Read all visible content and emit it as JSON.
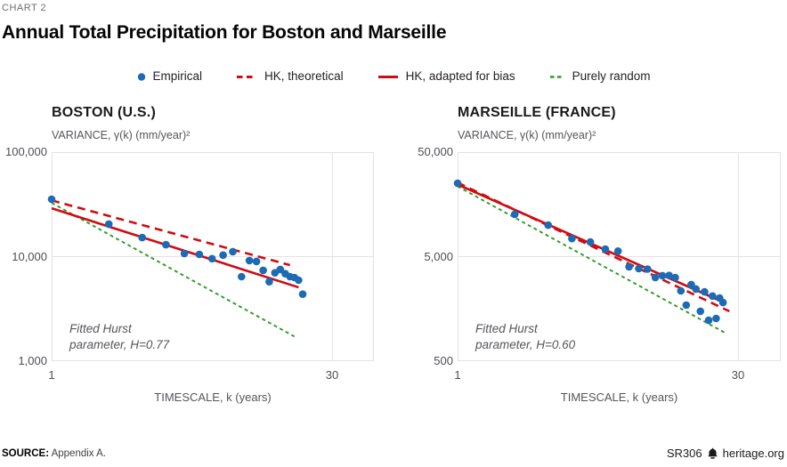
{
  "page": {
    "kicker": "CHART 2",
    "title": "Annual Total Precipitation for Boston and Marseille",
    "source_label": "SOURCE:",
    "source_text": "Appendix A.",
    "report_id": "SR306",
    "site": "heritage.org"
  },
  "colors": {
    "empirical": "#1d6ab5",
    "hk_red": "#d00b12",
    "random_green": "#2e9a25",
    "grid": "#e3e3e3",
    "text_gray": "#55565a"
  },
  "legend": [
    {
      "label": "Empirical",
      "marker": "dot",
      "color": "#1d6ab5"
    },
    {
      "label": "HK, theoretical",
      "marker": "dash-long",
      "color": "#d00b12"
    },
    {
      "label": "HK, adapted for bias",
      "marker": "solid",
      "color": "#d00b12"
    },
    {
      "label": "Purely random",
      "marker": "dash-short",
      "color": "#2e9a25"
    }
  ],
  "chart_data": [
    {
      "id": "boston",
      "type": "scatter",
      "title": "BOSTON (U.S.)",
      "ylabel": "VARIANCE, γ(k) (mm/year)²",
      "xlabel": "TIMESCALE, k (years)",
      "annotation_lines": [
        "Fitted Hurst",
        "parameter, H=0.77"
      ],
      "hurst_H": 0.77,
      "x_scale": "log",
      "y_scale": "log",
      "xlim": [
        1,
        49
      ],
      "ylim": [
        1000,
        100000
      ],
      "x_ticks": [
        1,
        30
      ],
      "x_tick_labels": [
        "1",
        "30"
      ],
      "y_ticks": [
        100000,
        10000,
        1000
      ],
      "y_tick_labels": [
        "100,000",
        "10,000",
        "1,000"
      ],
      "series": {
        "empirical": [
          [
            1,
            35400
          ],
          [
            2,
            20500
          ],
          [
            3,
            15200
          ],
          [
            4,
            13000
          ],
          [
            5,
            10700
          ],
          [
            6,
            10500
          ],
          [
            7,
            9560
          ],
          [
            8,
            10330
          ],
          [
            9,
            11150
          ],
          [
            10,
            6430
          ],
          [
            11,
            9180
          ],
          [
            12,
            9000
          ],
          [
            13,
            7400
          ],
          [
            14,
            5760
          ],
          [
            15,
            7000
          ],
          [
            16,
            7540
          ],
          [
            17,
            6870
          ],
          [
            18,
            6440
          ],
          [
            19,
            6310
          ],
          [
            20,
            5950
          ],
          [
            21,
            4370
          ]
        ],
        "hk_theoretical": [
          [
            1,
            34500
          ],
          [
            18,
            8300
          ]
        ],
        "hk_adapted_for_bias": [
          [
            1,
            29000
          ],
          [
            20,
            5080
          ]
        ],
        "purely_random": [
          [
            1,
            32700
          ],
          [
            19,
            1720
          ]
        ]
      }
    },
    {
      "id": "marseille",
      "type": "scatter",
      "title": "MARSEILLE (FRANCE)",
      "ylabel": "VARIANCE, γ(k) (mm/year)²",
      "xlabel": "TIMESCALE, k (years)",
      "annotation_lines": [
        "Fitted Hurst",
        "parameter, H=0.60"
      ],
      "hurst_H": 0.6,
      "x_scale": "log",
      "y_scale": "log",
      "xlim": [
        1,
        49
      ],
      "ylim": [
        500,
        50000
      ],
      "x_ticks": [
        1,
        30
      ],
      "x_tick_labels": [
        "1",
        "30"
      ],
      "y_ticks": [
        50000,
        5000,
        500
      ],
      "y_tick_labels": [
        "50,000",
        "5,000",
        "500"
      ],
      "series": {
        "empirical": [
          [
            1,
            25200
          ],
          [
            2,
            12700
          ],
          [
            3,
            10000
          ],
          [
            4,
            7450
          ],
          [
            5,
            6900
          ],
          [
            6,
            5900
          ],
          [
            7,
            5650
          ],
          [
            8,
            4000
          ],
          [
            9,
            3840
          ],
          [
            10,
            3800
          ],
          [
            11,
            3160
          ],
          [
            12,
            3290
          ],
          [
            13,
            3300
          ],
          [
            14,
            3150
          ],
          [
            15,
            2350
          ],
          [
            16,
            1720
          ],
          [
            17,
            2700
          ],
          [
            18,
            2450
          ],
          [
            19,
            1500
          ],
          [
            20,
            2300
          ],
          [
            21,
            1230
          ],
          [
            22,
            2100
          ],
          [
            23,
            1280
          ],
          [
            24,
            2010
          ],
          [
            25,
            1820
          ]
        ],
        "hk_theoretical": [
          [
            1,
            25500
          ],
          [
            27,
            1500
          ]
        ],
        "hk_adapted_for_bias": [
          [
            1,
            24500
          ],
          [
            24,
            1900
          ]
        ],
        "purely_random": [
          [
            1,
            23500
          ],
          [
            26,
            920
          ]
        ]
      }
    }
  ]
}
